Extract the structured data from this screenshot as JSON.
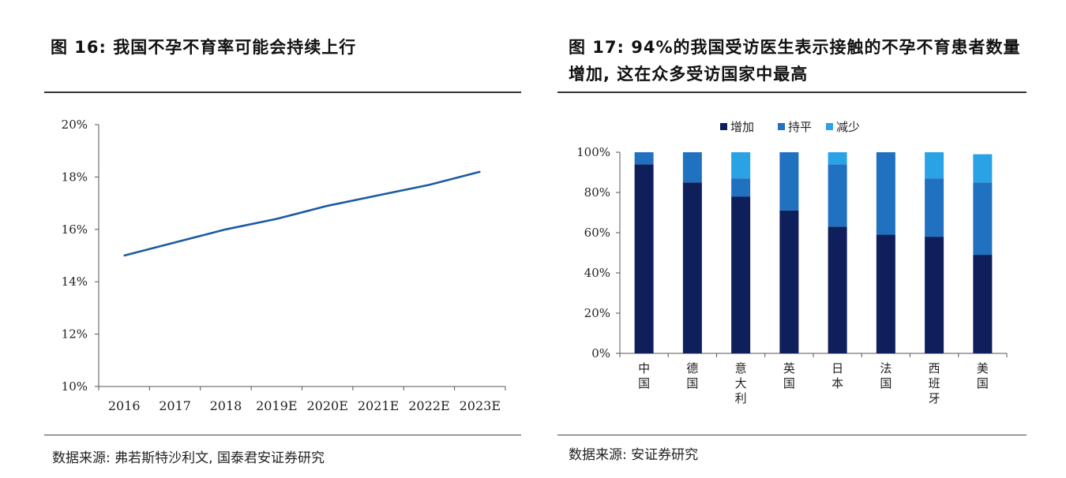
{
  "left": {
    "title": "图 16: 我国不孕不育率可能会持续上行",
    "source": "数据来源: 弗若斯特沙利文, 国泰君安证券研究"
  },
  "right": {
    "title": "图 17: 94%的我国受访医生表示接触的不孕不育患者数量增加, 这在众多受访国家中最高",
    "source": "数据来源: 安证券研究"
  },
  "chart_data": [
    {
      "type": "line",
      "title": "图 16: 我国不孕不育率可能会持续上行",
      "x": [
        "2016",
        "2017",
        "2018",
        "2019E",
        "2020E",
        "2021E",
        "2022E",
        "2023E"
      ],
      "series": [
        {
          "values": [
            15.0,
            15.5,
            16.0,
            16.4,
            16.9,
            17.3,
            17.7,
            18.2
          ]
        }
      ],
      "ylim": [
        10,
        20
      ],
      "yticks": [
        "10%",
        "12%",
        "14%",
        "16%",
        "18%",
        "20%"
      ],
      "xlabel": "",
      "ylabel": "",
      "grid": false,
      "color": "#1d5aa3"
    },
    {
      "type": "bar",
      "stacked": true,
      "title": "图 17: 94%的我国受访医生表示接触的不孕不育患者数量增加, 这在众多受访国家中最高",
      "categories": [
        "中国",
        "德国",
        "意大利",
        "英国",
        "日本",
        "法国",
        "西班牙",
        "美国"
      ],
      "series": [
        {
          "name": "增加",
          "color": "#0f1f5c",
          "values": [
            94,
            85,
            78,
            71,
            63,
            59,
            58,
            49
          ]
        },
        {
          "name": "持平",
          "color": "#2171c1",
          "values": [
            6,
            15,
            9,
            29,
            31,
            41,
            29,
            36
          ]
        },
        {
          "name": "减少",
          "color": "#29a3e6",
          "values": [
            0,
            0,
            13,
            0,
            6,
            0,
            13,
            14
          ]
        }
      ],
      "ylim": [
        0,
        100
      ],
      "yticks": [
        "0%",
        "20%",
        "40%",
        "60%",
        "80%",
        "100%"
      ],
      "legend_position": "top",
      "grid": false
    }
  ]
}
